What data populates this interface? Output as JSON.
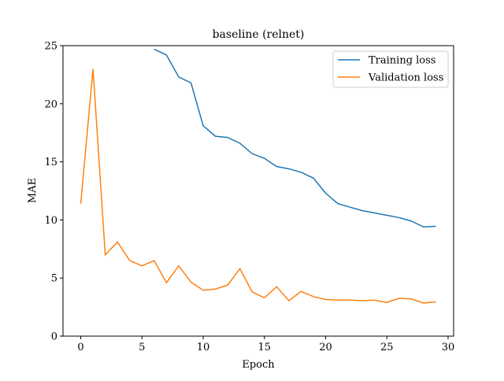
{
  "chart_data": {
    "type": "line",
    "title": "baseline (relnet)",
    "xlabel": "Epoch",
    "ylabel": "MAE",
    "x": [
      0,
      1,
      2,
      3,
      4,
      5,
      6,
      7,
      8,
      9,
      10,
      11,
      12,
      13,
      14,
      15,
      16,
      17,
      18,
      19,
      20,
      21,
      22,
      23,
      24,
      25,
      26,
      27,
      28,
      29
    ],
    "series": [
      {
        "name": "Training loss",
        "color": "#1f77b4",
        "values": [
          null,
          null,
          null,
          null,
          null,
          null,
          24.7,
          24.2,
          22.3,
          21.8,
          18.1,
          17.2,
          17.1,
          16.6,
          15.7,
          15.3,
          14.6,
          14.4,
          14.1,
          13.6,
          12.3,
          11.4,
          11.1,
          10.8,
          10.6,
          10.4,
          10.2,
          9.9,
          9.4,
          9.45
        ]
      },
      {
        "name": "Validation loss",
        "color": "#ff7f0e",
        "values": [
          11.4,
          23.0,
          7.0,
          8.1,
          6.5,
          6.05,
          6.5,
          4.6,
          6.05,
          4.65,
          3.95,
          4.05,
          4.4,
          5.8,
          3.8,
          3.3,
          4.25,
          3.05,
          3.85,
          3.4,
          3.15,
          3.1,
          3.1,
          3.05,
          3.1,
          2.9,
          3.25,
          3.2,
          2.85,
          2.95
        ]
      }
    ],
    "xlim": [
      -1.45,
      30.45
    ],
    "xticks": [
      0,
      5,
      10,
      15,
      20,
      25,
      30
    ],
    "ylim": [
      0,
      25
    ],
    "yticks": [
      0,
      5,
      10,
      15,
      20,
      25
    ],
    "legend": "upper right"
  }
}
